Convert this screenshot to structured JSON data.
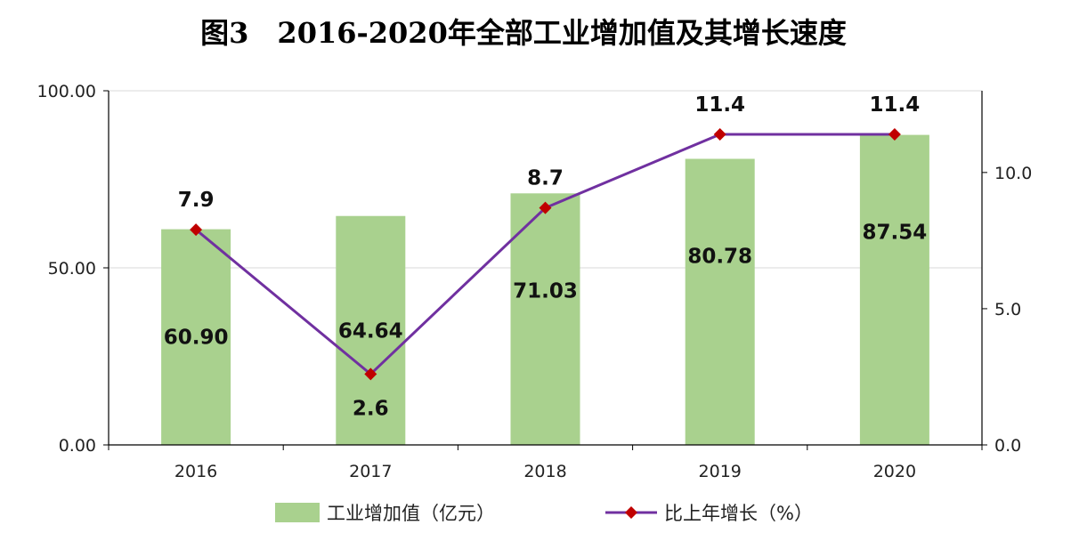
{
  "chart_data": {
    "type": "bar+line",
    "title": "图3　2016-2020年全部工业增加值及其增长速度",
    "categories": [
      "2016",
      "2017",
      "2018",
      "2019",
      "2020"
    ],
    "series": [
      {
        "name": "工业增加值（亿元）",
        "type": "bar",
        "axis": "left",
        "values": [
          60.9,
          64.64,
          71.03,
          80.78,
          87.54
        ],
        "labels": [
          "60.90",
          "64.64",
          "71.03",
          "80.78",
          "87.54"
        ],
        "color": "#a9d18e"
      },
      {
        "name": "比上年增长（%）",
        "type": "line",
        "axis": "right",
        "values": [
          7.9,
          2.6,
          8.7,
          11.4,
          11.4
        ],
        "labels": [
          "7.9",
          "2.6",
          "8.7",
          "11.4",
          "11.4"
        ],
        "color": "#7030a0",
        "marker_color": "#c00000"
      }
    ],
    "left_axis": {
      "ylim": [
        0,
        100
      ],
      "ticks": [
        0,
        50,
        100
      ],
      "tick_labels": [
        "0.00",
        "50.00",
        "100.00"
      ]
    },
    "right_axis": {
      "ylim": [
        0,
        13
      ],
      "ticks": [
        0,
        5,
        10
      ],
      "tick_labels": [
        "0.0",
        "5.0",
        "10.0"
      ]
    },
    "grid": true,
    "legend": "bottom"
  }
}
